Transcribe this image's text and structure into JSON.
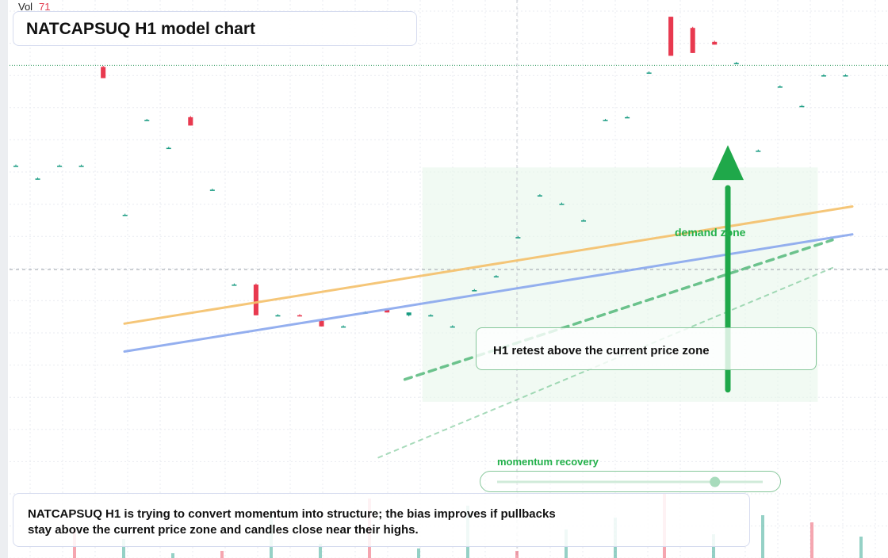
{
  "title": "NATCAPSUQ H1 model chart",
  "volume": {
    "label": "Vol",
    "value": "71"
  },
  "annotations": {
    "callout": "H1 retest above the current price zone",
    "demand_zone": "demand zone",
    "momentum": "momentum recovery",
    "note": "NATCAPSUQ H1 is trying to convert momentum into structure; the bias improves if pullbacks stay above the current price zone and candles close near their highs."
  },
  "colors": {
    "up": "#159a80",
    "down": "#e8394f",
    "ma_fast": "#f5c06a",
    "ma_slow": "#89a7ee",
    "signal": "#1fa84a",
    "zone": "#e5f6ea"
  },
  "chart_data": {
    "type": "candlestick",
    "title": "NATCAPSUQ H1 model chart",
    "y_range": [
      0,
      100
    ],
    "current_price": 88.3,
    "crosshair_price": 51.7,
    "candles": [
      {
        "o": 70.3,
        "h": 70.5,
        "l": 70.3,
        "c": 70.3
      },
      {
        "o": 68.0,
        "h": 68.2,
        "l": 68.0,
        "c": 68.0
      },
      {
        "o": 70.3,
        "h": 70.5,
        "l": 70.3,
        "c": 70.3
      },
      {
        "o": 70.3,
        "h": 70.5,
        "l": 70.3,
        "c": 70.3
      },
      {
        "o": 88.0,
        "h": 88.2,
        "l": 86.0,
        "c": 86.0
      },
      {
        "o": 61.5,
        "h": 61.7,
        "l": 61.5,
        "c": 61.5
      },
      {
        "o": 78.5,
        "h": 78.7,
        "l": 78.5,
        "c": 78.5
      },
      {
        "o": 73.5,
        "h": 73.7,
        "l": 73.5,
        "c": 73.5
      },
      {
        "o": 79.0,
        "h": 79.2,
        "l": 77.5,
        "c": 77.5
      },
      {
        "o": 66.0,
        "h": 66.2,
        "l": 66.0,
        "c": 66.0
      },
      {
        "o": 49.0,
        "h": 49.2,
        "l": 49.0,
        "c": 49.0
      },
      {
        "o": 49.0,
        "h": 49.2,
        "l": 43.5,
        "c": 43.5
      },
      {
        "o": 43.5,
        "h": 43.7,
        "l": 43.5,
        "c": 43.5
      },
      {
        "o": 43.5,
        "h": 43.7,
        "l": 43.3,
        "c": 43.3
      },
      {
        "o": 42.5,
        "h": 42.7,
        "l": 41.5,
        "c": 41.5
      },
      {
        "o": 41.5,
        "h": 41.7,
        "l": 41.5,
        "c": 41.5
      },
      {
        "o": 44.0,
        "h": 44.2,
        "l": 44.0,
        "c": 44.0
      },
      {
        "o": 44.5,
        "h": 44.5,
        "l": 44.0,
        "c": 44.0
      },
      {
        "o": 43.5,
        "h": 44.0,
        "l": 43.3,
        "c": 44.0
      },
      {
        "o": 43.5,
        "h": 43.7,
        "l": 43.5,
        "c": 43.5
      },
      {
        "o": 41.5,
        "h": 41.7,
        "l": 41.5,
        "c": 41.5
      },
      {
        "o": 48.0,
        "h": 48.2,
        "l": 48.0,
        "c": 48.0
      },
      {
        "o": 50.5,
        "h": 50.7,
        "l": 50.5,
        "c": 50.5
      },
      {
        "o": 57.5,
        "h": 57.7,
        "l": 57.5,
        "c": 57.5
      },
      {
        "o": 65.0,
        "h": 65.2,
        "l": 65.0,
        "c": 65.0
      },
      {
        "o": 63.5,
        "h": 63.7,
        "l": 63.5,
        "c": 63.5
      },
      {
        "o": 60.5,
        "h": 60.7,
        "l": 60.5,
        "c": 60.5
      },
      {
        "o": 78.5,
        "h": 78.7,
        "l": 78.5,
        "c": 78.5
      },
      {
        "o": 79.0,
        "h": 79.2,
        "l": 79.0,
        "c": 79.0
      },
      {
        "o": 87.0,
        "h": 87.2,
        "l": 87.0,
        "c": 87.0
      },
      {
        "o": 97.0,
        "h": 97.0,
        "l": 90.0,
        "c": 90.0
      },
      {
        "o": 95.0,
        "h": 95.2,
        "l": 90.5,
        "c": 90.5
      },
      {
        "o": 92.5,
        "h": 92.7,
        "l": 92.0,
        "c": 92.0
      },
      {
        "o": 88.7,
        "h": 88.9,
        "l": 88.7,
        "c": 88.7
      },
      {
        "o": 73.0,
        "h": 73.2,
        "l": 73.0,
        "c": 73.0
      },
      {
        "o": 84.5,
        "h": 84.7,
        "l": 84.5,
        "c": 84.5
      },
      {
        "o": 81.0,
        "h": 81.2,
        "l": 81.0,
        "c": 81.0
      },
      {
        "o": 86.5,
        "h": 86.7,
        "l": 86.5,
        "c": 86.5
      },
      {
        "o": 86.5,
        "h": 86.7,
        "l": 86.5,
        "c": 86.5
      }
    ],
    "candles_note_index": "H1 bars, oldest first",
    "series": [
      {
        "name": "",
        "type": "line",
        "from": [
          0,
          42
        ],
        "to": [
          1,
          63
        ]
      },
      {
        "name": "",
        "type": "line",
        "from": [
          0,
          37
        ],
        "to": [
          1,
          58
        ]
      },
      {
        "name": "",
        "type": "dashed",
        "from": [
          0.45,
          32
        ],
        "to": [
          1,
          57
        ]
      },
      {
        "name": "",
        "type": "dashed",
        "from": [
          0.42,
          18
        ],
        "to": [
          1,
          52
        ]
      }
    ],
    "signal_arrow": {
      "from": 30,
      "to": 72
    },
    "zones": [
      {
        "label": "demand zone",
        "from": 28,
        "to": 70
      }
    ],
    "momentum_level": 0.82
  }
}
